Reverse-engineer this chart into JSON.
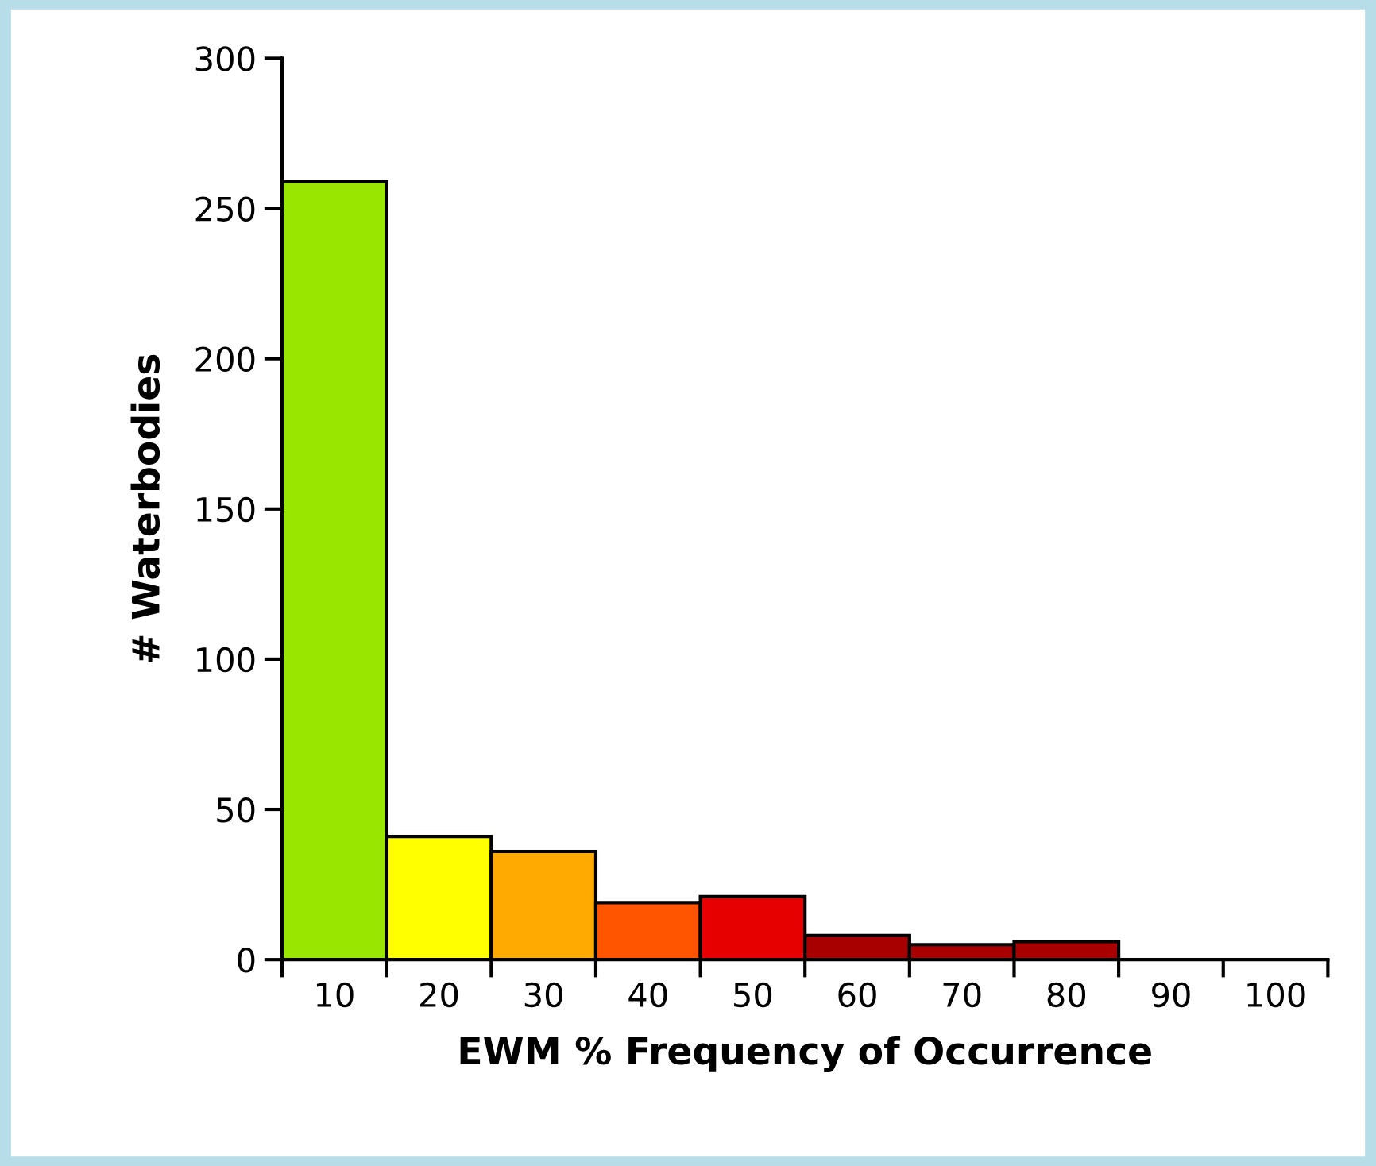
{
  "chart_data": {
    "type": "bar",
    "xlabel": "EWM % Frequency of Occurrence",
    "ylabel": "# Waterbodies",
    "categories": [
      "10",
      "20",
      "30",
      "40",
      "50",
      "60",
      "70",
      "80",
      "90",
      "100"
    ],
    "values": [
      259,
      41,
      36,
      19,
      21,
      8,
      5,
      6,
      0,
      0
    ],
    "colors": [
      "#99e600",
      "#ffff00",
      "#ffaa00",
      "#ff5500",
      "#e60000",
      "#a80000",
      "#a80000",
      "#a80000",
      "#000000",
      "#000000"
    ],
    "ylim": [
      0,
      300
    ],
    "yticks": [
      0,
      50,
      100,
      150,
      200,
      250,
      300
    ],
    "grid": false,
    "legend": false
  }
}
